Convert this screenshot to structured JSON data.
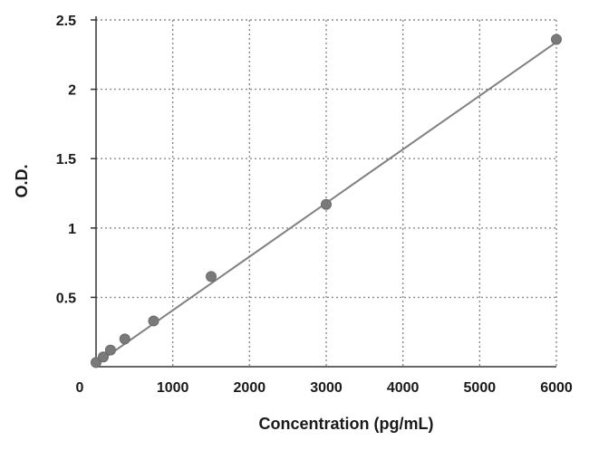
{
  "chart_data": {
    "type": "scatter",
    "title": "",
    "xlabel": "Concentration (pg/mL)",
    "ylabel": "O.D.",
    "xlim": [
      0,
      6000
    ],
    "ylim": [
      0,
      2.5
    ],
    "x_ticks": [
      "0",
      "1000",
      "2000",
      "3000",
      "4000",
      "5000",
      "6000"
    ],
    "y_ticks": [
      "0.5",
      "1",
      "1.5",
      "2",
      "2.5"
    ],
    "grid": true,
    "legend": "none",
    "series": [
      {
        "x": [
          0,
          94,
          188,
          375,
          750,
          1500,
          3000,
          6000
        ],
        "y": [
          0.03,
          0.07,
          0.12,
          0.2,
          0.33,
          0.65,
          1.17,
          2.36
        ]
      }
    ],
    "trendline": {
      "type": "linear",
      "x": [
        0,
        6000
      ],
      "y": [
        0.02,
        2.34
      ]
    },
    "colors": {
      "marker": "#7a7a7a",
      "line": "#808080",
      "grid": "#8a8a8a",
      "axis": "#333333"
    }
  }
}
